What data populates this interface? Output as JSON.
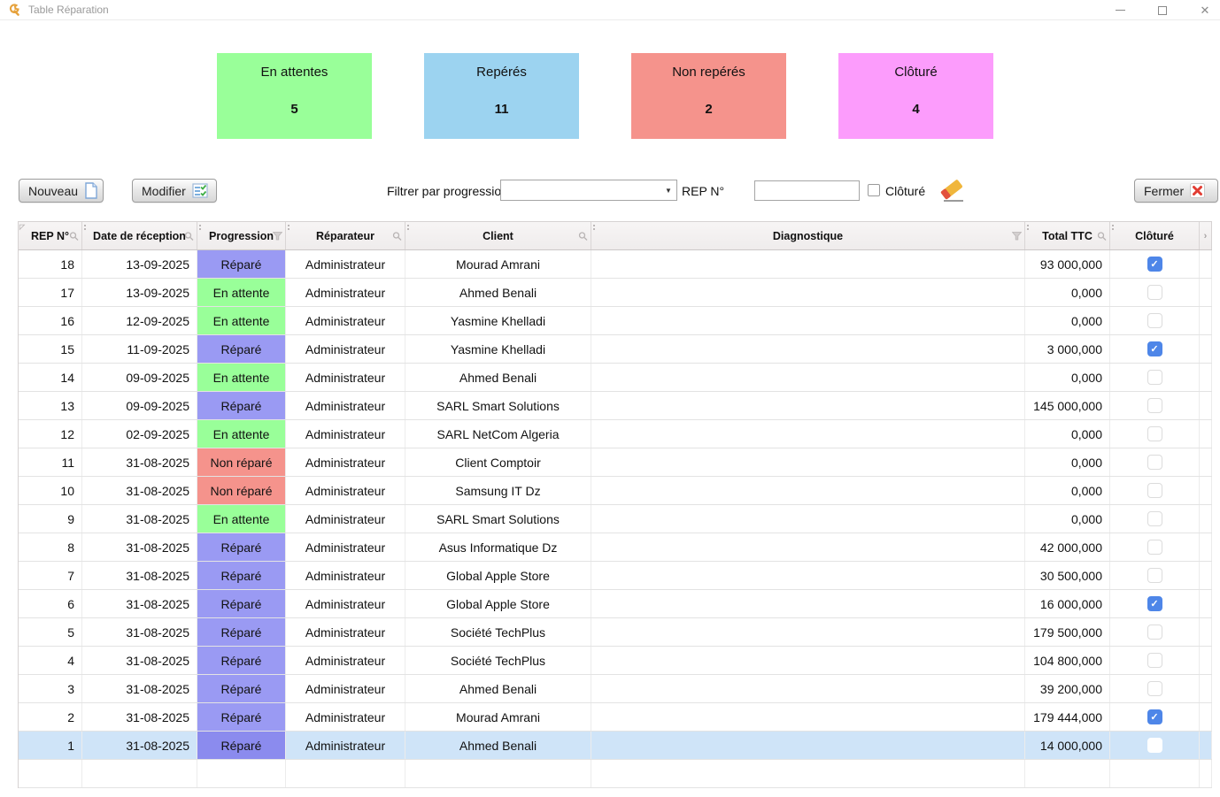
{
  "window": {
    "title": "Table Réparation"
  },
  "colors": {
    "green": "#99ff99",
    "blue": "#9cd3f0",
    "salmon": "#f5938c",
    "pink": "#fc9cfc",
    "repare_chip": "#9a9af3",
    "repare_chip_selected": "#8b8bee",
    "selected_row": "#cfe4f8",
    "checkbox_checked": "#4e86e8"
  },
  "cards": [
    {
      "label": "En attentes",
      "value": "5"
    },
    {
      "label": "Repérés",
      "value": "11"
    },
    {
      "label": "Non repérés",
      "value": "2"
    },
    {
      "label": "Clôturé",
      "value": "4"
    }
  ],
  "toolbar": {
    "nouveau_label": "Nouveau",
    "modifier_label": "Modifier",
    "filter_label": "Filtrer par progression",
    "filter_value": "",
    "rep_label": "REP N°",
    "rep_value": "",
    "cloture_label": "Clôturé",
    "fermer_label": "Fermer"
  },
  "table": {
    "columns": [
      "REP N°",
      "Date de réception",
      "Progression",
      "Réparateur",
      "Client",
      "Diagnostique",
      "Total TTC",
      "Clôturé"
    ],
    "progression_colors": {
      "Réparé": "#9a9af3",
      "En attente": "#99ff99",
      "Non réparé": "#f5938c"
    },
    "rows": [
      {
        "rep": "18",
        "date": "13-09-2025",
        "progression": "Réparé",
        "reparateur": "Administrateur",
        "client": "Mourad Amrani",
        "diagnostique": "",
        "total": "93 000,000",
        "cloture": true,
        "selected": false
      },
      {
        "rep": "17",
        "date": "13-09-2025",
        "progression": "En attente",
        "reparateur": "Administrateur",
        "client": "Ahmed Benali",
        "diagnostique": "",
        "total": "0,000",
        "cloture": false,
        "selected": false
      },
      {
        "rep": "16",
        "date": "12-09-2025",
        "progression": "En attente",
        "reparateur": "Administrateur",
        "client": "Yasmine Khelladi",
        "diagnostique": "",
        "total": "0,000",
        "cloture": false,
        "selected": false
      },
      {
        "rep": "15",
        "date": "11-09-2025",
        "progression": "Réparé",
        "reparateur": "Administrateur",
        "client": "Yasmine Khelladi",
        "diagnostique": "",
        "total": "3 000,000",
        "cloture": true,
        "selected": false
      },
      {
        "rep": "14",
        "date": "09-09-2025",
        "progression": "En attente",
        "reparateur": "Administrateur",
        "client": "Ahmed Benali",
        "diagnostique": "",
        "total": "0,000",
        "cloture": false,
        "selected": false
      },
      {
        "rep": "13",
        "date": "09-09-2025",
        "progression": "Réparé",
        "reparateur": "Administrateur",
        "client": "SARL Smart Solutions",
        "diagnostique": "",
        "total": "145 000,000",
        "cloture": false,
        "selected": false
      },
      {
        "rep": "12",
        "date": "02-09-2025",
        "progression": "En attente",
        "reparateur": "Administrateur",
        "client": "SARL NetCom Algeria",
        "diagnostique": "",
        "total": "0,000",
        "cloture": false,
        "selected": false
      },
      {
        "rep": "11",
        "date": "31-08-2025",
        "progression": "Non réparé",
        "reparateur": "Administrateur",
        "client": "Client Comptoir",
        "diagnostique": "",
        "total": "0,000",
        "cloture": false,
        "selected": false
      },
      {
        "rep": "10",
        "date": "31-08-2025",
        "progression": "Non réparé",
        "reparateur": "Administrateur",
        "client": "Samsung IT Dz",
        "diagnostique": "",
        "total": "0,000",
        "cloture": false,
        "selected": false
      },
      {
        "rep": "9",
        "date": "31-08-2025",
        "progression": "En attente",
        "reparateur": "Administrateur",
        "client": "SARL Smart Solutions",
        "diagnostique": "",
        "total": "0,000",
        "cloture": false,
        "selected": false
      },
      {
        "rep": "8",
        "date": "31-08-2025",
        "progression": "Réparé",
        "reparateur": "Administrateur",
        "client": "Asus Informatique Dz",
        "diagnostique": "",
        "total": "42 000,000",
        "cloture": false,
        "selected": false
      },
      {
        "rep": "7",
        "date": "31-08-2025",
        "progression": "Réparé",
        "reparateur": "Administrateur",
        "client": "Global Apple Store",
        "diagnostique": "",
        "total": "30 500,000",
        "cloture": false,
        "selected": false
      },
      {
        "rep": "6",
        "date": "31-08-2025",
        "progression": "Réparé",
        "reparateur": "Administrateur",
        "client": "Global Apple Store",
        "diagnostique": "",
        "total": "16 000,000",
        "cloture": true,
        "selected": false
      },
      {
        "rep": "5",
        "date": "31-08-2025",
        "progression": "Réparé",
        "reparateur": "Administrateur",
        "client": "Société TechPlus",
        "diagnostique": "",
        "total": "179 500,000",
        "cloture": false,
        "selected": false
      },
      {
        "rep": "4",
        "date": "31-08-2025",
        "progression": "Réparé",
        "reparateur": "Administrateur",
        "client": "Société TechPlus",
        "diagnostique": "",
        "total": "104 800,000",
        "cloture": false,
        "selected": false
      },
      {
        "rep": "3",
        "date": "31-08-2025",
        "progression": "Réparé",
        "reparateur": "Administrateur",
        "client": "Ahmed Benali",
        "diagnostique": "",
        "total": "39 200,000",
        "cloture": false,
        "selected": false
      },
      {
        "rep": "2",
        "date": "31-08-2025",
        "progression": "Réparé",
        "reparateur": "Administrateur",
        "client": "Mourad Amrani",
        "diagnostique": "",
        "total": "179 444,000",
        "cloture": true,
        "selected": false
      },
      {
        "rep": "1",
        "date": "31-08-2025",
        "progression": "Réparé",
        "reparateur": "Administrateur",
        "client": "Ahmed Benali",
        "diagnostique": "",
        "total": "14 000,000",
        "cloture": false,
        "selected": true
      }
    ]
  }
}
